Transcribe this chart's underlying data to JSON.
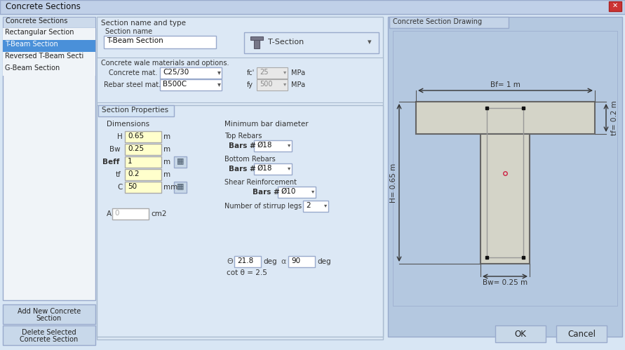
{
  "title": "Concrete Sections",
  "bg_window": "#cdd9e8",
  "bg_main": "#dce8f5",
  "bg_panel": "#c8d8ec",
  "bg_drawing": "#b0c4de",
  "bg_listsel": "#4a90d9",
  "bg_button": "#d0dce8",
  "bg_yellow": "#ffffcc",
  "bg_titlebar": "#b8cce0",
  "close_btn": "#cc3333",
  "beam_fill": "#d4d4c8",
  "beam_stroke": "#666666",
  "centroid_color": "#cc2244",
  "arrow_color": "#333333",
  "list_items": [
    "Rectangular Section",
    "T-Beam Section",
    "Reversed T-Beam Secti",
    "G-Beam Section"
  ],
  "section_name": "T-Beam Section",
  "concrete_mat": "C25/30",
  "rebar_mat": "B500C",
  "fc": "25",
  "fy": "500",
  "H": "0.65",
  "Bw": "0.25",
  "Beff": "1",
  "tf": "0.2",
  "C": "50",
  "A": "0",
  "top_bar": "Ø18",
  "bot_bar": "Ø18",
  "shear_bar": "Ø10",
  "stirrup_legs": "2",
  "theta": "21.8",
  "alpha": "90",
  "cot_theta": "2.5",
  "Bf_label": "Bf= 1 m",
  "H_label": "H= 0.65 m",
  "tf_label": "tf= 0.2 m",
  "Bw_label": "Bw= 0.25 m"
}
